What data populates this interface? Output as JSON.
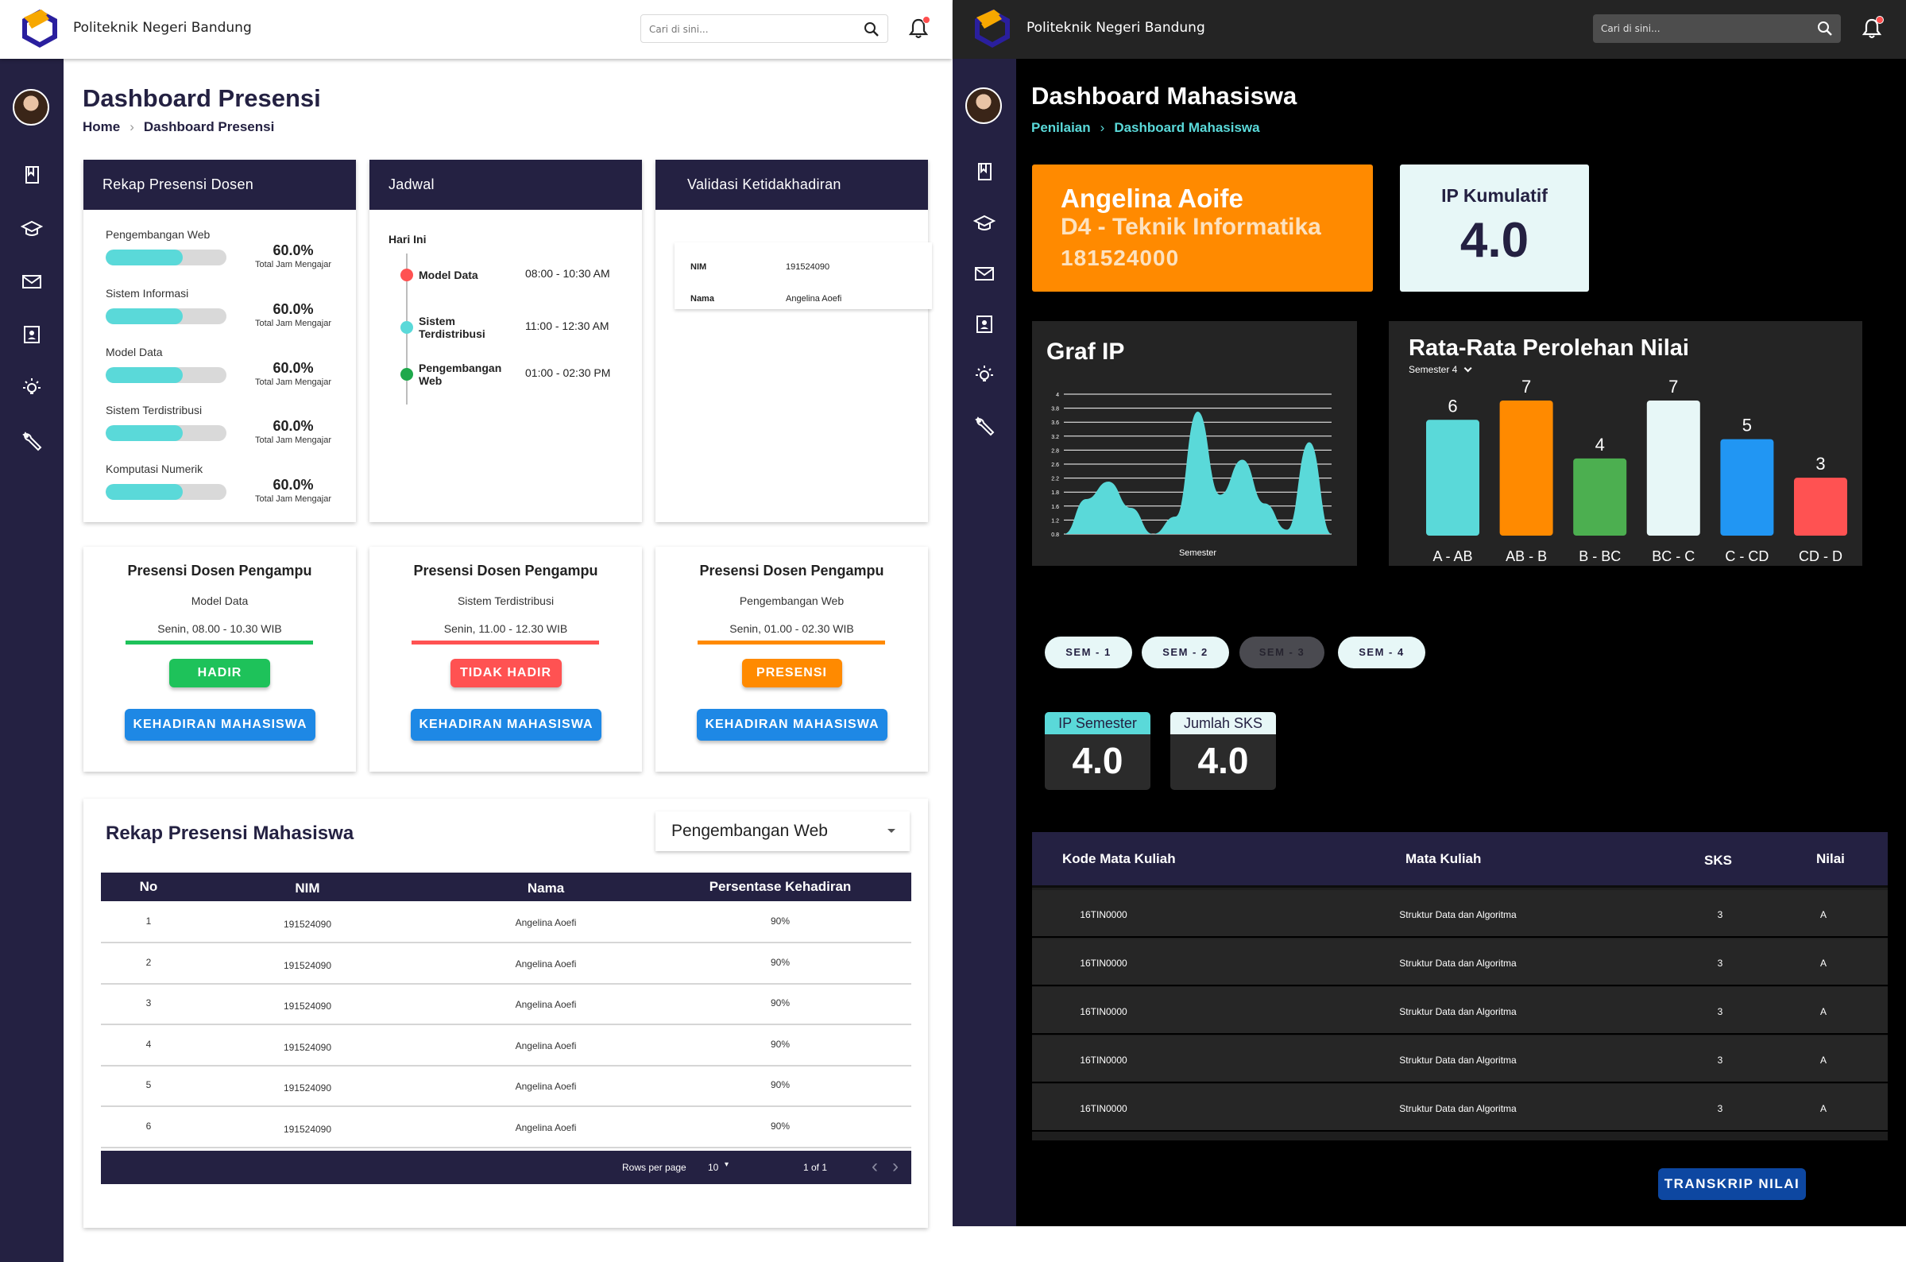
{
  "colors": {
    "navy": "#242142",
    "teal": "#5ad9d9",
    "green": "#1ec25a",
    "red": "#ff5252",
    "orange": "#ff8a00",
    "blue": "#2196f3",
    "dark_panel": "#242424"
  },
  "left": {
    "header": {
      "brand": "Politeknik Negeri Bandung",
      "search_placeholder": "Cari di sini...",
      "search_icon": "search-icon",
      "bell_icon": "bell-icon"
    },
    "sidebar": {
      "icons": [
        "bookmark-icon",
        "graduation-cap-icon",
        "mail-icon",
        "id-card-icon",
        "lightbulb-icon",
        "wrench-icon"
      ]
    },
    "page_title": "Dashboard Presensi",
    "breadcrumb": {
      "home": "Home",
      "current": "Dashboard Presensi"
    },
    "rekap_dosen": {
      "title": "Rekap Presensi Dosen",
      "items": [
        {
          "name": "Pengembangan Web",
          "value": "60.0%",
          "progress": 0.64,
          "caption": "Total Jam Mengajar"
        },
        {
          "name": "Sistem Informasi",
          "value": "60.0%",
          "progress": 0.64,
          "caption": "Total Jam Mengajar"
        },
        {
          "name": "Model Data",
          "value": "60.0%",
          "progress": 0.64,
          "caption": "Total Jam Mengajar"
        },
        {
          "name": "Sistem Terdistribusi",
          "value": "60.0%",
          "progress": 0.64,
          "caption": "Total Jam Mengajar"
        },
        {
          "name": "Komputasi Numerik",
          "value": "60.0%",
          "progress": 0.64,
          "caption": "Total Jam Mengajar"
        }
      ]
    },
    "jadwal": {
      "title": "Jadwal",
      "day_label": "Hari Ini",
      "items": [
        {
          "name": "Model Data",
          "time": "08:00 - 10:30 AM",
          "color": "#ff5252"
        },
        {
          "name": "Sistem Terdistribusi",
          "time": "11:00 - 12:30 AM",
          "color": "#5ad9d9"
        },
        {
          "name": "Pengembangan Web",
          "time": "01:00 - 02:30 PM",
          "color": "#1ea84b"
        }
      ]
    },
    "validasi": {
      "title": "Validasi Ketidakhadiran",
      "nim_label": "NIM",
      "nim_value": "191524090",
      "nama_label": "Nama",
      "nama_value": "Angelina Aoefi"
    },
    "presensi_cards": [
      {
        "title": "Presensi Dosen Pengampu",
        "course": "Model Data",
        "schedule": "Senin, 08.00 - 10.30 WIB",
        "status": "HADIR",
        "status_color": "#1ec25a",
        "action": "KEHADIRAN MAHASISWA"
      },
      {
        "title": "Presensi Dosen Pengampu",
        "course": "Sistem Terdistribusi",
        "schedule": "Senin, 11.00 - 12.30 WIB",
        "status": "TIDAK HADIR",
        "status_color": "#ff5252",
        "action": "KEHADIRAN MAHASISWA"
      },
      {
        "title": "Presensi Dosen Pengampu",
        "course": "Pengembangan Web",
        "schedule": "Senin, 01.00 - 02.30 WIB",
        "status": "PRESENSI",
        "status_color": "#ff8a00",
        "action": "KEHADIRAN MAHASISWA"
      }
    ],
    "rekap_mahasiswa": {
      "title": "Rekap Presensi Mahasiswa",
      "selected_course": "Pengembangan Web",
      "columns": [
        "No",
        "NIM",
        "Nama",
        "Persentase Kehadiran"
      ],
      "rows": [
        [
          "1",
          "191524090",
          "Angelina Aoefi",
          "90%"
        ],
        [
          "2",
          "191524090",
          "Angelina Aoefi",
          "90%"
        ],
        [
          "3",
          "191524090",
          "Angelina Aoefi",
          "90%"
        ],
        [
          "4",
          "191524090",
          "Angelina Aoefi",
          "90%"
        ],
        [
          "5",
          "191524090",
          "Angelina Aoefi",
          "90%"
        ],
        [
          "6",
          "191524090",
          "Angelina Aoefi",
          "90%"
        ]
      ],
      "footer": {
        "rows_per_page_label": "Rows per page",
        "rows_per_page": "10",
        "page_info": "1 of 1"
      }
    }
  },
  "right": {
    "header": {
      "brand": "Politeknik Negeri Bandung",
      "search_placeholder": "Cari di sini..."
    },
    "page_title": "Dashboard Mahasiswa",
    "breadcrumb": {
      "parent": "Penilaian",
      "current": "Dashboard Mahasiswa"
    },
    "profile": {
      "name": "Angelina Aoife",
      "program": "D4 - Teknik Informatika",
      "nim": "181524000"
    },
    "ip_kumulatif": {
      "label": "IP Kumulatif",
      "value": "4.0"
    },
    "graf_ip": {
      "title": "Graf IP",
      "xlabel": "Semester",
      "y_ticks": [
        "4.0",
        "3.8",
        "3.6",
        "3.2",
        "2.8",
        "2.6",
        "2.2",
        "1.8",
        "1.6",
        "1.2",
        "0.8"
      ]
    },
    "rata_rata": {
      "title": "Rata-Rata Perolehan Nilai",
      "filter": "Semester 4"
    },
    "semester_chips": [
      {
        "label": "SEM - 1",
        "active": true
      },
      {
        "label": "SEM - 2",
        "active": true
      },
      {
        "label": "SEM - 3",
        "active": false
      },
      {
        "label": "SEM - 4",
        "active": true
      }
    ],
    "ip_semester": {
      "label": "IP Semester",
      "value": "4.0"
    },
    "jumlah_sks": {
      "label": "Jumlah SKS",
      "value": "4.0"
    },
    "nilai_table": {
      "columns": [
        "Kode Mata Kuliah",
        "Mata Kuliah",
        "SKS",
        "Nilai"
      ],
      "rows": [
        [
          "16TIN0000",
          "Struktur Data dan Algoritma",
          "3",
          "A"
        ],
        [
          "16TIN0000",
          "Struktur Data dan Algoritma",
          "3",
          "A"
        ],
        [
          "16TIN0000",
          "Struktur Data dan Algoritma",
          "3",
          "A"
        ],
        [
          "16TIN0000",
          "Struktur Data dan Algoritma",
          "3",
          "A"
        ],
        [
          "16TIN0000",
          "Struktur Data dan Algoritma",
          "3",
          "A"
        ]
      ]
    },
    "transkrip_button": "TRANSKRIP NILAI"
  },
  "chart_data": [
    {
      "type": "area",
      "title": "Graf IP",
      "xlabel": "Semester",
      "ylabel": "",
      "ylim": [
        0.8,
        4.0
      ],
      "y_ticks": [
        4.0,
        3.8,
        3.6,
        3.2,
        2.8,
        2.6,
        2.2,
        1.8,
        1.6,
        1.2,
        0.8
      ],
      "x": [
        0,
        1,
        2,
        3,
        4,
        5,
        6,
        7,
        8,
        9,
        10,
        11,
        12
      ],
      "values": [
        0.8,
        1.6,
        2.0,
        1.4,
        0.8,
        1.2,
        3.6,
        1.7,
        2.5,
        1.5,
        0.9,
        2.9,
        0.8
      ],
      "color": "#5ad9d9",
      "grid": true
    },
    {
      "type": "bar",
      "title": "Rata-Rata Perolehan Nilai",
      "xlabel": "",
      "ylabel": "",
      "categories": [
        "A - AB",
        "AB - B",
        "B - BC",
        "BC - C",
        "C - CD",
        "CD - D"
      ],
      "values": [
        6,
        7,
        4,
        7,
        5,
        3
      ],
      "colors": [
        "#5ad9d9",
        "#ff8a00",
        "#4caf50",
        "#e7f7f7",
        "#2196f3",
        "#ff5252"
      ],
      "ylim": [
        0,
        7
      ]
    }
  ]
}
